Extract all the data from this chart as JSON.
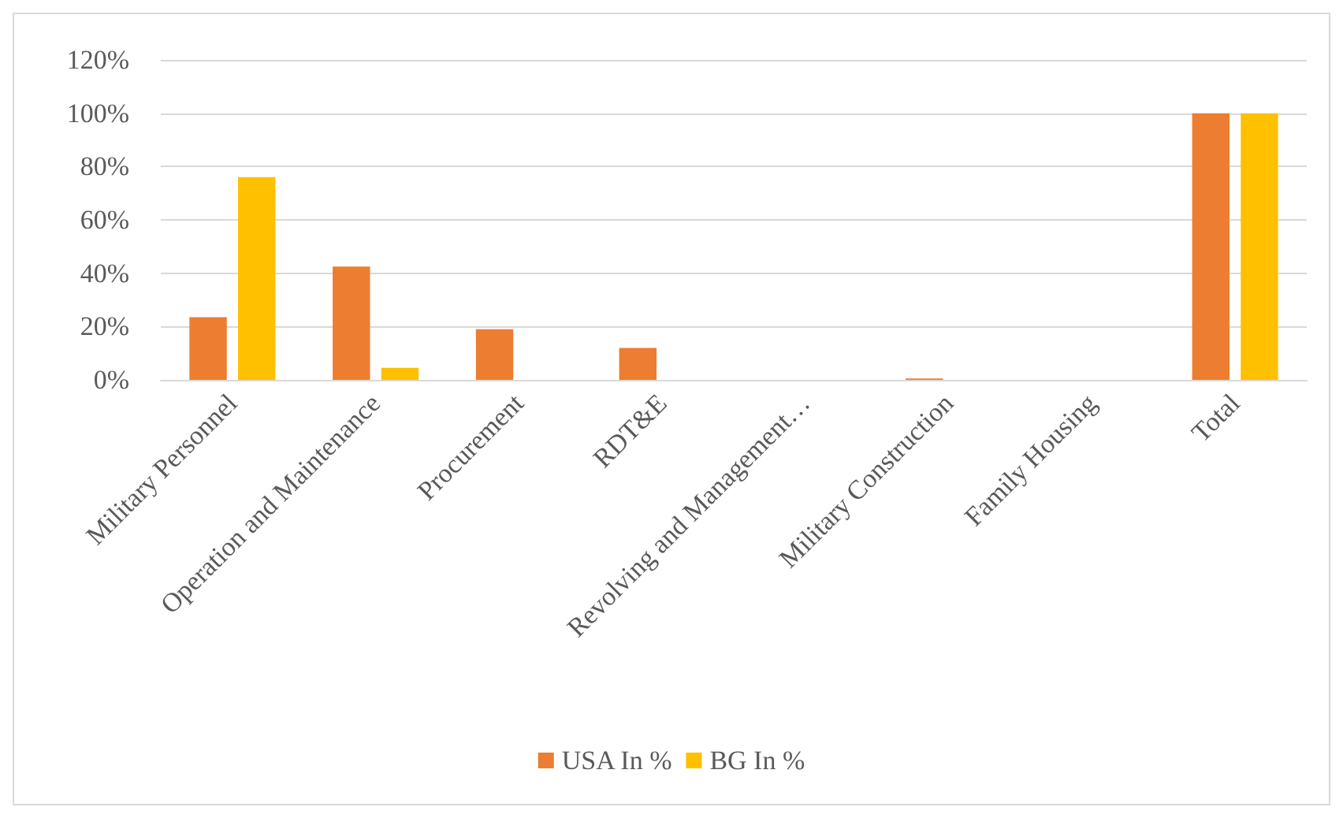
{
  "chart_data": {
    "type": "bar",
    "categories": [
      "Military Personnel",
      "Operation and Maintenance",
      "Procurement",
      "RDT&E",
      "Revolving and Management…",
      "Military Construction",
      "Family Housing",
      "Total"
    ],
    "series": [
      {
        "name": "USA In %",
        "color": "#ed7d31",
        "values": [
          23.5,
          42.5,
          19,
          12,
          0,
          0.5,
          0,
          100
        ]
      },
      {
        "name": "BG In %",
        "color": "#ffc000",
        "values": [
          76,
          4.5,
          0,
          0,
          0,
          0,
          0,
          100
        ]
      }
    ],
    "ylim": [
      0,
      120
    ],
    "yticks": [
      {
        "value": 0,
        "label": "0%"
      },
      {
        "value": 20,
        "label": "20%"
      },
      {
        "value": 40,
        "label": "40%"
      },
      {
        "value": 60,
        "label": "60%"
      },
      {
        "value": 80,
        "label": "80%"
      },
      {
        "value": 100,
        "label": "100%"
      },
      {
        "value": 120,
        "label": "120%"
      }
    ],
    "grid": "y",
    "legend": "bottom"
  }
}
